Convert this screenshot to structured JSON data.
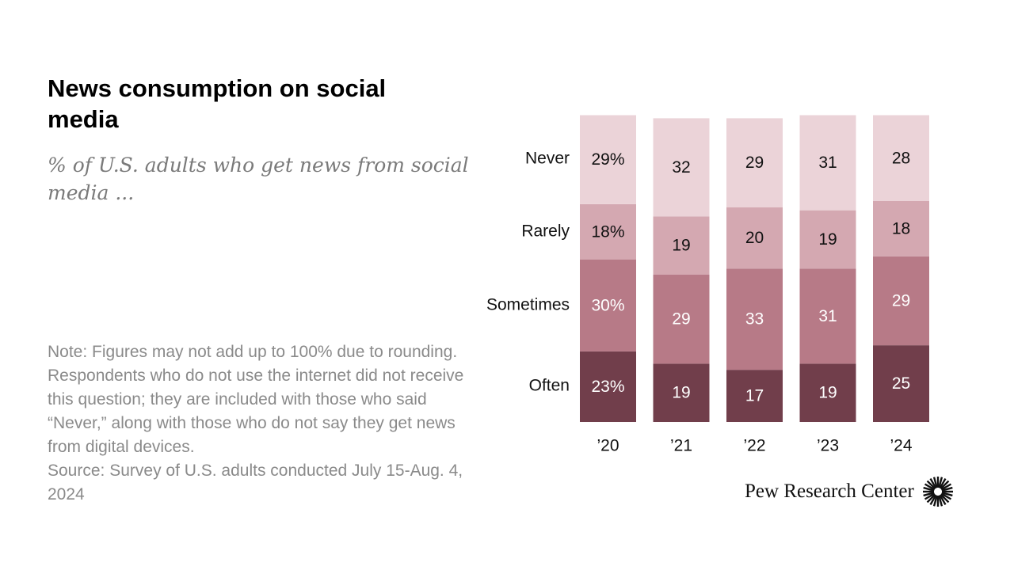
{
  "title": "News consumption on social media",
  "subtitle": "% of U.S. adults who get news from social media ...",
  "note": "Note: Figures may not add up to 100% due to rounding. Respondents who do not use the internet did not receive this question; they are included with those who said “Never,” along with those who do not say they get news from digital devices.",
  "source": "Source: Survey of U.S. adults conducted July 15-Aug. 4, 2024",
  "brand": "Pew Research Center",
  "brand_logo_icon": "pew-sunburst-icon",
  "chart_data": {
    "type": "bar",
    "stacked": true,
    "categories": [
      "’20",
      "’21",
      "’22",
      "’23",
      "’24"
    ],
    "series": [
      {
        "name": "Often",
        "values": [
          23,
          19,
          17,
          19,
          25
        ],
        "labels": [
          "23%",
          "19",
          "17",
          "19",
          "25"
        ],
        "color": "#713e4b",
        "label_color": "#ffffff"
      },
      {
        "name": "Sometimes",
        "values": [
          30,
          29,
          33,
          31,
          29
        ],
        "labels": [
          "30%",
          "29",
          "33",
          "31",
          "29"
        ],
        "color": "#b77a87",
        "label_color": "#ffffff"
      },
      {
        "name": "Rarely",
        "values": [
          18,
          19,
          20,
          19,
          18
        ],
        "labels": [
          "18%",
          "19",
          "20",
          "19",
          "18"
        ],
        "color": "#d4a8b1",
        "label_color": "#111111"
      },
      {
        "name": "Never",
        "values": [
          29,
          32,
          29,
          31,
          28
        ],
        "labels": [
          "29%",
          "32",
          "29",
          "31",
          "28"
        ],
        "color": "#ebd3d8",
        "label_color": "#111111"
      }
    ],
    "legend_placement": "left of bars, aligned to first bar segments",
    "ylim": [
      0,
      100
    ],
    "grid": false
  }
}
